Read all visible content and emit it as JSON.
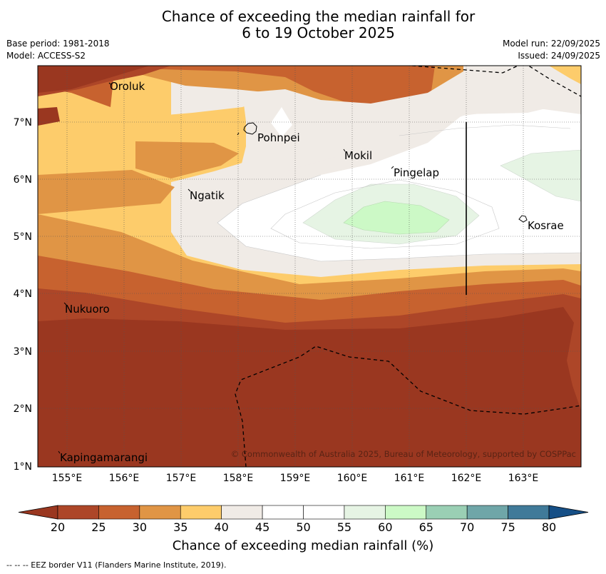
{
  "title": {
    "line1": "Chance of exceeding the median rainfall for",
    "line2": "6 to 19 October 2025"
  },
  "meta": {
    "base_period": "Base period: 1981-2018",
    "model": "Model: ACCESS-S2",
    "model_run": "Model run: 22/09/2025",
    "issued": "Issued: 24/09/2025"
  },
  "map": {
    "lon_ticks": [
      "155°E",
      "156°E",
      "157°E",
      "158°E",
      "159°E",
      "160°E",
      "161°E",
      "162°E",
      "163°E"
    ],
    "lat_ticks": [
      "7°N",
      "6°N",
      "5°N",
      "4°N",
      "3°N",
      "2°N",
      "1°N"
    ],
    "places": [
      {
        "name": "Oroluk"
      },
      {
        "name": "Pohnpei"
      },
      {
        "name": "Mokil"
      },
      {
        "name": "Pingelap"
      },
      {
        "name": "Ngatik"
      },
      {
        "name": "Kosrae"
      },
      {
        "name": "Nukuoro"
      },
      {
        "name": "Kapingamarangi"
      }
    ],
    "copyright": "© Commonwealth of Australia 2025, Bureau of Meteorology, supported by COSPPac"
  },
  "colorbar": {
    "labels": [
      "20",
      "25",
      "30",
      "35",
      "40",
      "45",
      "50",
      "55",
      "60",
      "65",
      "70",
      "75",
      "80"
    ],
    "colors": [
      "#9a3720",
      "#ad4628",
      "#c7622f",
      "#e09545",
      "#fdcc6b",
      "#f0ebe6",
      "#ffffff",
      "#ffffff",
      "#e6f4e4",
      "#ccf9c6",
      "#9acfb4",
      "#6fa6a8",
      "#407a99",
      "#164f86"
    ],
    "label": "Chance of exceeding median rainfall (%)"
  },
  "footnote": "-- -- -- EEZ border V11 (Flanders Marine Institute, 2019)."
}
